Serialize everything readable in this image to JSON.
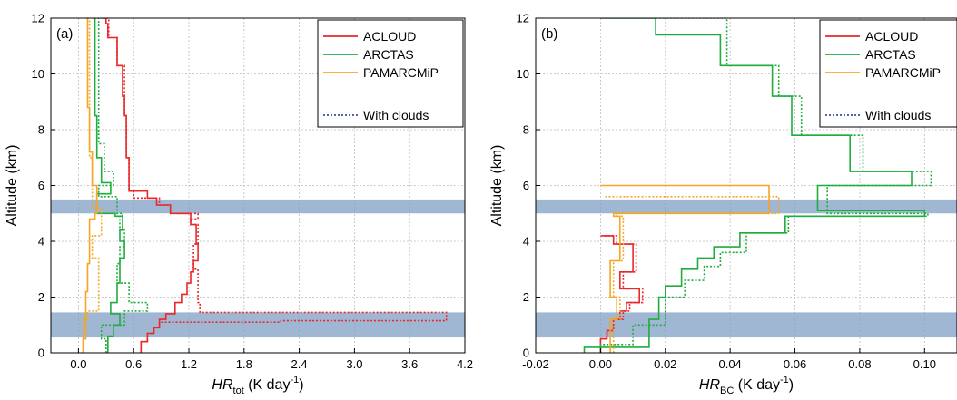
{
  "chart_data": [
    {
      "type": "line",
      "panel_label": "(a)",
      "xlabel": {
        "main": "HR",
        "sub": "tot",
        "unit": " (K day",
        "sup": "-1",
        "close": ")"
      },
      "ylabel": "Altitude (km)",
      "xlim": [
        -0.3,
        4.2
      ],
      "ylim": [
        0,
        12
      ],
      "xticks": [
        "0.0",
        "0.6",
        "1.2",
        "1.8",
        "2.4",
        "3.0",
        "3.6",
        "4.2"
      ],
      "xtick_values": [
        0,
        0.6,
        1.2,
        1.8,
        2.4,
        3.0,
        3.6,
        4.2
      ],
      "yticks": [
        "0",
        "2",
        "4",
        "6",
        "8",
        "10",
        "12"
      ],
      "ytick_values": [
        0,
        2,
        4,
        6,
        8,
        10,
        12
      ],
      "grid": true,
      "legend": {
        "placement": "top-right",
        "entries": [
          "ACLOUD",
          "ARCTAS",
          "PAMARCMiP"
        ],
        "clouds_label": "With clouds"
      },
      "shaded_bands": [
        [
          0.55,
          1.45
        ],
        [
          5.0,
          5.5
        ]
      ],
      "series": [
        {
          "name": "ACLOUD",
          "color": "#e8282a",
          "dash": false,
          "x": [
            0.68,
            0.75,
            0.82,
            0.88,
            0.95,
            1.05,
            1.12,
            1.18,
            1.22,
            1.25,
            1.3,
            1.28,
            1.22,
            1.0,
            0.85,
            0.75,
            0.55,
            0.52,
            0.5,
            0.48,
            0.42,
            0.32,
            0.3,
            0.28,
            0.25
          ],
          "y": [
            0,
            0.4,
            0.7,
            0.9,
            1.2,
            1.4,
            1.8,
            2.1,
            2.5,
            2.9,
            3.3,
            3.9,
            4.6,
            5.0,
            5.3,
            5.55,
            5.8,
            7.0,
            8.5,
            9.2,
            10.3,
            11.3,
            11.8,
            12.0,
            12.0
          ]
        },
        {
          "name": "ACLOUD",
          "color": "#e8282a",
          "dash": true,
          "x": [
            0.68,
            0.75,
            0.82,
            0.88,
            2.2,
            4.0,
            4.0,
            1.32,
            1.3,
            1.3,
            1.25,
            1.3,
            1.22,
            1.3,
            1.0,
            0.88,
            0.6,
            0.55,
            0.52,
            0.5,
            0.42,
            0.33,
            0.3
          ],
          "y": [
            0,
            0.4,
            0.7,
            0.9,
            1.1,
            1.15,
            1.4,
            1.45,
            1.8,
            2.4,
            3.0,
            3.9,
            4.6,
            4.8,
            5.0,
            5.3,
            5.55,
            5.8,
            7.0,
            8.5,
            10.3,
            11.3,
            12.0
          ]
        },
        {
          "name": "ARCTAS",
          "color": "#1fae3e",
          "dash": false,
          "x": [
            0.32,
            0.38,
            0.45,
            0.35,
            0.42,
            0.45,
            0.5,
            0.45,
            0.48,
            0.4,
            0.2,
            0.35,
            0.25,
            0.2,
            0.18,
            0.15
          ],
          "y": [
            0,
            0.6,
            1.0,
            1.4,
            1.8,
            2.5,
            3.4,
            4.0,
            4.4,
            4.9,
            5.0,
            5.7,
            6.1,
            7.0,
            8.5,
            12.0
          ]
        },
        {
          "name": "ARCTAS",
          "color": "#1fae3e",
          "dash": true,
          "x": [
            0.3,
            0.25,
            0.5,
            0.75,
            0.55,
            0.42,
            0.45,
            0.5,
            0.45,
            0.48,
            0.42,
            0.22,
            0.38,
            0.28,
            0.22,
            0.18
          ],
          "y": [
            0,
            0.5,
            1.0,
            1.5,
            1.8,
            2.5,
            3.2,
            3.8,
            4.4,
            4.9,
            5.0,
            5.6,
            6.0,
            6.5,
            7.5,
            12.0
          ]
        },
        {
          "name": "PAMARCMiP",
          "color": "#f5a623",
          "dash": false,
          "x": [
            0.05,
            0.08,
            0.1,
            0.12,
            0.18,
            0.2,
            0.15,
            0.12,
            0.1,
            0.08
          ],
          "y": [
            0,
            0.5,
            2.2,
            3.2,
            4.8,
            5.0,
            6.0,
            7.2,
            8.8,
            12.0
          ]
        },
        {
          "name": "PAMARCMiP",
          "color": "#f5a623",
          "dash": true,
          "x": [
            0.05,
            0.1,
            0.22,
            0.15,
            0.25,
            0.15,
            0.12,
            0.1
          ],
          "y": [
            0,
            1.2,
            1.5,
            3.4,
            4.2,
            5.2,
            7.0,
            12.0
          ]
        }
      ]
    },
    {
      "type": "line",
      "panel_label": "(b)",
      "xlabel": {
        "main": "HR",
        "sub": "BC",
        "unit": " (K day",
        "sup": "-1",
        "close": ")"
      },
      "ylabel": "Altitude (km)",
      "xlim": [
        -0.02,
        0.11
      ],
      "ylim": [
        0,
        12
      ],
      "xticks": [
        "-0.02",
        "0.00",
        "0.02",
        "0.04",
        "0.06",
        "0.08",
        "0.10"
      ],
      "xtick_values": [
        -0.02,
        0,
        0.02,
        0.04,
        0.06,
        0.08,
        0.1
      ],
      "yticks": [
        "0",
        "2",
        "4",
        "6",
        "8",
        "10",
        "12"
      ],
      "ytick_values": [
        0,
        2,
        4,
        6,
        8,
        10,
        12
      ],
      "grid": true,
      "legend": {
        "placement": "top-right",
        "entries": [
          "ACLOUD",
          "ARCTAS",
          "PAMARCMiP"
        ],
        "clouds_label": "With clouds"
      },
      "shaded_bands": [
        [
          0.55,
          1.45
        ],
        [
          5.0,
          5.5
        ]
      ],
      "series": [
        {
          "name": "ACLOUD",
          "color": "#e8282a",
          "dash": false,
          "x": [
            0.0,
            0.002,
            0.004,
            0.006,
            0.008,
            0.012,
            0.006,
            0.01,
            0.004,
            0.0
          ],
          "y": [
            0,
            0.5,
            0.8,
            1.2,
            1.5,
            1.8,
            2.3,
            2.9,
            3.9,
            4.2
          ]
        },
        {
          "name": "ACLOUD",
          "color": "#e8282a",
          "dash": true,
          "x": [
            0.0,
            0.002,
            0.004,
            0.007,
            0.009,
            0.013,
            0.007,
            0.011,
            0.005,
            0.001
          ],
          "y": [
            0,
            0.5,
            0.8,
            1.2,
            1.5,
            1.8,
            2.3,
            2.9,
            3.9,
            4.2
          ]
        },
        {
          "name": "ARCTAS",
          "color": "#1fae3e",
          "dash": false,
          "x": [
            -0.005,
            0.015,
            0.018,
            0.02,
            0.025,
            0.03,
            0.035,
            0.043,
            0.057,
            0.1,
            0.067,
            0.096,
            0.077,
            0.059,
            0.053,
            0.037,
            0.017,
            0.0
          ],
          "y": [
            0,
            0.2,
            1.2,
            2.0,
            2.4,
            3.0,
            3.4,
            3.8,
            4.3,
            4.9,
            5.1,
            6.0,
            6.5,
            7.8,
            9.2,
            10.3,
            11.4,
            12.0
          ]
        },
        {
          "name": "ARCTAS",
          "color": "#1fae3e",
          "dash": true,
          "x": [
            0.0,
            0.01,
            0.02,
            0.026,
            0.032,
            0.037,
            0.045,
            0.058,
            0.101,
            0.07,
            0.102,
            0.081,
            0.062,
            0.055,
            0.039,
            0.017
          ],
          "y": [
            0,
            0.3,
            1.0,
            2.0,
            2.6,
            3.1,
            3.6,
            4.3,
            4.9,
            5.0,
            6.0,
            6.5,
            7.8,
            9.2,
            10.3,
            12.0
          ]
        },
        {
          "name": "PAMARCMiP",
          "color": "#f5a623",
          "dash": false,
          "x": [
            0.003,
            0.005,
            0.003,
            0.006,
            0.004,
            0.052,
            0.0
          ],
          "y": [
            0,
            1.2,
            2.0,
            3.3,
            4.9,
            5.0,
            6.0
          ]
        },
        {
          "name": "PAMARCMiP",
          "color": "#f5a623",
          "dash": true,
          "x": [
            0.004,
            0.006,
            0.004,
            0.007,
            0.005,
            0.055,
            0.001
          ],
          "y": [
            0,
            1.2,
            2.0,
            3.3,
            4.9,
            5.0,
            5.6
          ]
        }
      ]
    }
  ],
  "colors": {
    "acloud": "#e8282a",
    "arctas": "#1fae3e",
    "pamarcmip": "#f5a623",
    "band": "#7f9fc3",
    "grid": "#bdbdbd",
    "clouds_legend": "#3a4fa8"
  }
}
